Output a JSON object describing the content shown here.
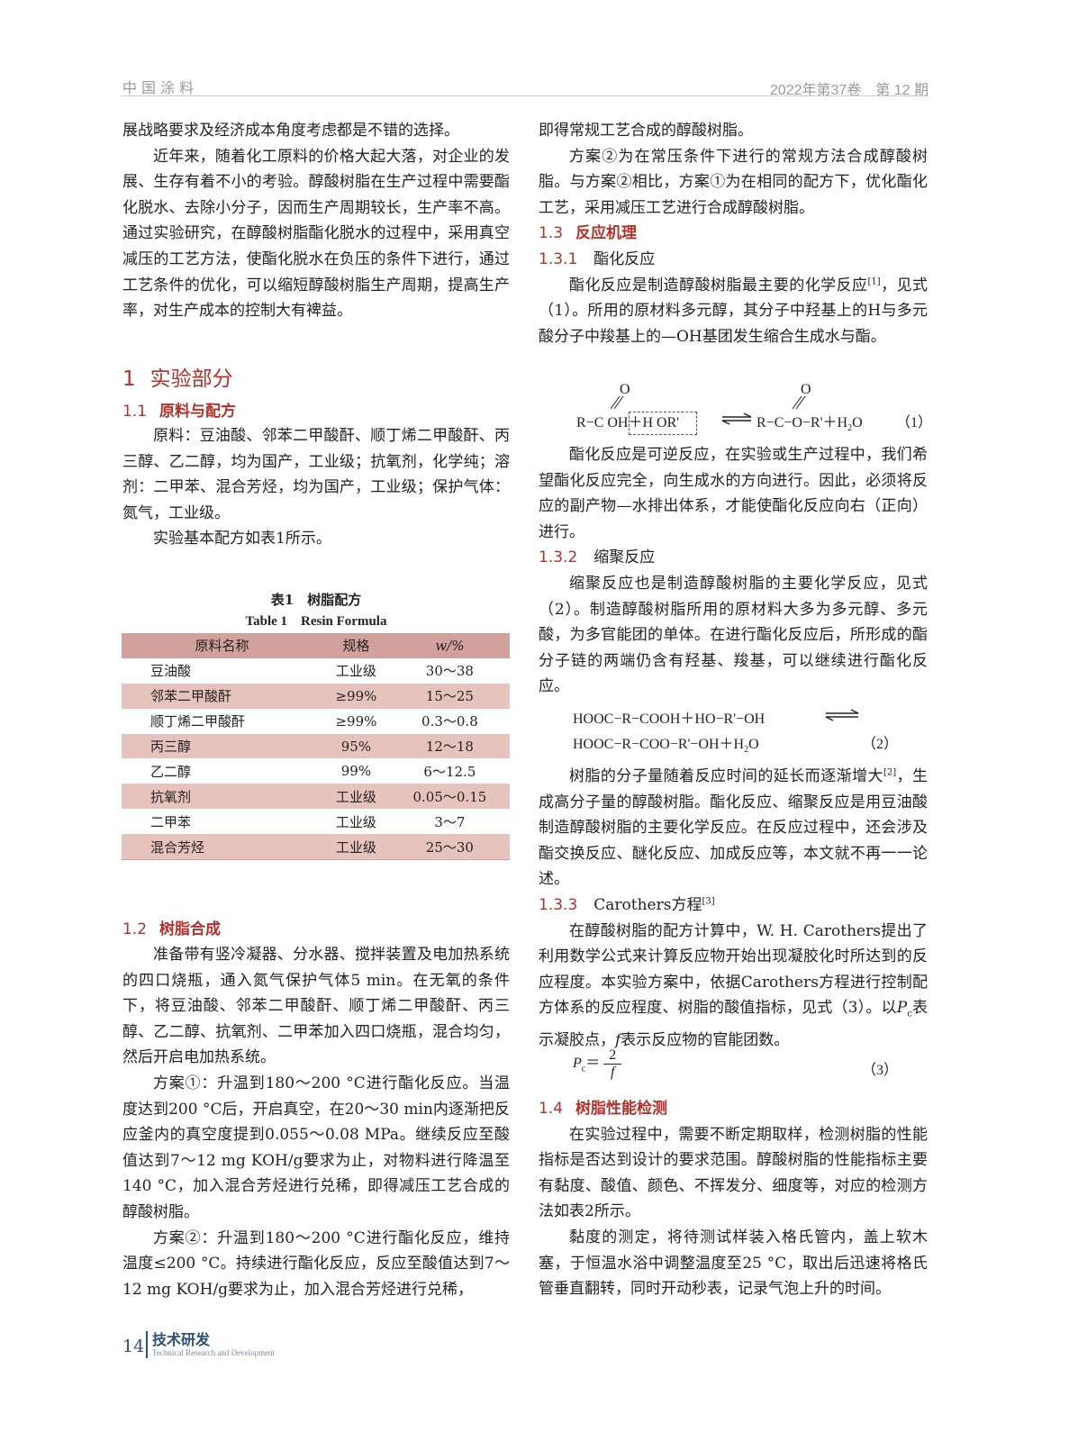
{
  "header": {
    "journal": "中国涂料",
    "issue": "2022年第37卷　第 12 期"
  },
  "left": {
    "p1": "展战略要求及经济成本角度考虑都是不错的选择。",
    "p2": "近年来，随着化工原料的价格大起大落，对企业的发展、生存有着不小的考验。醇酸树脂在生产过程中需要酯化脱水、去除小分子，因而生产周期较长，生产率不高。通过实验研究，在醇酸树脂酯化脱水的过程中，采用真空减压的工艺方法，使酯化脱水在负压的条件下进行，通过工艺条件的优化，可以缩短醇酸树脂生产周期，提高生产率，对生产成本的控制大有裨益。",
    "s1_num": "1",
    "s1_title": "实验部分",
    "s11_num": "1.1",
    "s11_title": "原料与配方",
    "p3": "原料：豆油酸、邻苯二甲酸酐、顺丁烯二甲酸酐、丙三醇、乙二醇，均为国产，工业级；抗氧剂，化学纯；溶剂：二甲苯、混合芳烃，均为国产，工业级；保护气体：氮气，工业级。",
    "p4": "实验基本配方如表1所示。",
    "s12_num": "1.2",
    "s12_title": "树脂合成",
    "p5": "准备带有竖冷凝器、分水器、搅拌装置及电加热系统的四口烧瓶，通入氮气保护气体5 min。在无氧的条件下，将豆油酸、邻苯二甲酸酐、顺丁烯二甲酸酐、丙三醇、乙二醇、抗氧剂、二甲苯加入四口烧瓶，混合均匀，然后开启电加热系统。",
    "p6": "方案①：升温到180～200 °C进行酯化反应。当温度达到200 °C后，开启真空，在20～30 min内逐渐把反应釜内的真空度提到0.055～0.08 MPa。继续反应至酸值达到7～12 mg KOH/g要求为止，对物料进行降温至140 °C，加入混合芳烃进行兑稀，即得减压工艺合成的醇酸树脂。",
    "p7": "方案②：升温到180～200 °C进行酯化反应，维持温度≤200 °C。持续进行酯化反应，反应至酸值达到7～12 mg KOH/g要求为止，加入混合芳烃进行兑稀，"
  },
  "table": {
    "caption_cn": "表1　树脂配方",
    "caption_en": "Table 1　Resin Formula",
    "columns": [
      "原料名称",
      "规格",
      "w/%"
    ],
    "rows": [
      [
        "豆油酸",
        "工业级",
        "30～38"
      ],
      [
        "邻苯二甲酸酐",
        "≥99%",
        "15～25"
      ],
      [
        "顺丁烯二甲酸酐",
        "≥99%",
        "0.3～0.8"
      ],
      [
        "丙三醇",
        "95%",
        "12～18"
      ],
      [
        "乙二醇",
        "99%",
        "6～12.5"
      ],
      [
        "抗氧剂",
        "工业级",
        "0.05～0.15"
      ],
      [
        "二甲苯",
        "工业级",
        "3～7"
      ],
      [
        "混合芳烃",
        "工业级",
        "25～30"
      ]
    ],
    "header_color": "#d3a19b",
    "stripe_color": "#e7c3be"
  },
  "right": {
    "p1": "即得常规工艺合成的醇酸树脂。",
    "p2": "方案②为在常压条件下进行的常规方法合成醇酸树脂。与方案②相比，方案①为在相同的配方下，优化酯化工艺，采用减压工艺进行合成醇酸树脂。",
    "s13_num": "1.3",
    "s13_title": "反应机理",
    "s131_num": "1.3.1",
    "s131_title": "酯化反应",
    "p3a": "酯化反应是制造醇酸树脂最主要的化学反应",
    "p3_ref": "[1]",
    "p3b": "，见式（1）。所用的原材料多元醇，其分子中羟基上的H与多元酸分子中羧基上的—OH基团发生缩合生成水与酯。",
    "eq1": {
      "o": "O",
      "lhs1": "R−C",
      "lhs2": "OH＋H",
      "lhs3": "OR'",
      "rhs": "R−C−O−R'＋H",
      "sub": "2",
      "rhs2": "O",
      "num": "（1）"
    },
    "p4": "酯化反应是可逆反应，在实验或生产过程中，我们希望酯化反应完全，向生成水的方向进行。因此，必须将反应的副产物—水排出体系，才能使酯化反应向右（正向）进行。",
    "s132_num": "1.3.2",
    "s132_title": "缩聚反应",
    "p5": "缩聚反应也是制造醇酸树脂的主要化学反应，见式（2）。制造醇酸树脂所用的原材料大多为多元醇、多元酸，为多官能团的单体。在进行酯化反应后，所形成的酯分子链的两端仍含有羟基、羧基，可以继续进行酯化反应。",
    "eq2": {
      "line1": "HOOC−R−COOH＋HO−R'−OH",
      "line2a": "HOOC−R−COO−R'−OH＋H",
      "sub": "2",
      "line2b": "O",
      "num": "（2）"
    },
    "p6a": "树脂的分子量随着反应时间的延长而逐渐增大",
    "p6_ref": "[2]",
    "p6b": "，生成高分子量的醇酸树脂。酯化反应、缩聚反应是用豆油酸制造醇酸树脂的主要化学反应。在反应过程中，还会涉及酯交换反应、醚化反应、加成反应等，本文就不再一一论述。",
    "s133_num": "1.3.3",
    "s133_title": "Carothers方程",
    "s133_ref": "[3]",
    "p7a": "在醇酸树脂的配方计算中，W. H. Carothers提出了利用数学公式来计算反应物开始出现凝胶化时所达到的反应程度。本实验方案中，依据Carothers方程进行控制配方体系的反应程度、树脂的酸值指标，见式（3）。以",
    "p7_pc": "P",
    "p7_c": "c",
    "p7b": "表示凝胶点，",
    "p7_f": "f",
    "p7c": "表示反应物的官能团数。",
    "eq3": {
      "p": "P",
      "c": "c",
      "eq": "＝",
      "numer": "2",
      "denom": "f",
      "num": "（3）"
    },
    "s14_num": "1.4",
    "s14_title": "树脂性能检测",
    "p8": "在实验过程中，需要不断定期取样，检测树脂的性能指标是否达到设计的要求范围。醇酸树脂的性能指标主要有黏度、酸值、颜色、不挥发分、细度等，对应的检测方法如表2所示。",
    "p9": "黏度的测定，将待测试样装入格氏管内，盖上软木塞，于恒温水浴中调整温度至25 °C，取出后迅速将格氏管垂直翻转，同时开动秒表，记录气泡上升的时间。"
  },
  "footer": {
    "page": "14",
    "section_cn": "技术研发",
    "section_en": "Technical Research and Development"
  },
  "colors": {
    "accent_red": "#b4302a",
    "footer_blue": "#2e4f78"
  }
}
